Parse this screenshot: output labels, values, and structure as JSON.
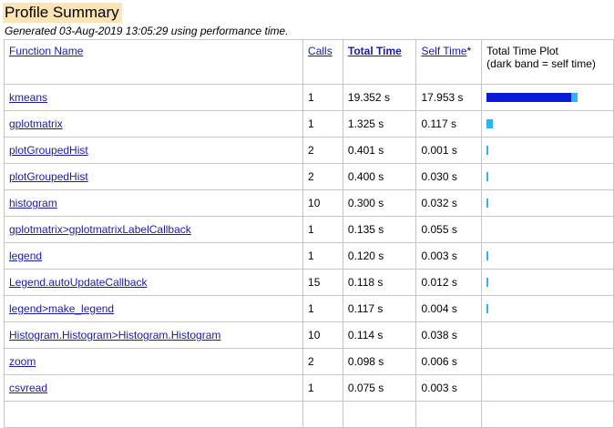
{
  "title": "Profile Summary",
  "subtitle": "Generated 03-Aug-2019 13:05:29 using performance time.",
  "headers": {
    "function_name": "Function Name",
    "calls": "Calls",
    "total_time": "Total Time",
    "self_time": "Self Time",
    "self_time_suffix": "*",
    "plot_line1": "Total Time Plot",
    "plot_line2": "(dark band = self time)"
  },
  "colors": {
    "total_band": "#2fb4f2",
    "self_band": "#0b1ad8",
    "title_bg": "#fde4b4",
    "link": "#1a1aa6"
  },
  "rows": [
    {
      "fn": "kmeans",
      "calls": "1",
      "total": "19.352 s",
      "self": "17.953 s",
      "total_val": 19.352,
      "self_val": 17.953
    },
    {
      "fn": "gplotmatrix",
      "calls": "1",
      "total": "1.325 s",
      "self": "0.117 s",
      "total_val": 1.325,
      "self_val": 0.117
    },
    {
      "fn": "plotGroupedHist",
      "calls": "2",
      "total": "0.401 s",
      "self": "0.001 s",
      "total_val": 0.401,
      "self_val": 0.001
    },
    {
      "fn": "plotGroupedHist",
      "calls": "2",
      "total": "0.400 s",
      "self": "0.030 s",
      "total_val": 0.4,
      "self_val": 0.03
    },
    {
      "fn": "histogram",
      "calls": "10",
      "total": "0.300 s",
      "self": "0.032 s",
      "total_val": 0.3,
      "self_val": 0.032
    },
    {
      "fn": "gplotmatrix>gplotmatrixLabelCallback",
      "calls": "1",
      "total": "0.135 s",
      "self": "0.055 s",
      "total_val": 0.135,
      "self_val": 0.055,
      "no_plot": true
    },
    {
      "fn": "legend",
      "calls": "1",
      "total": "0.120 s",
      "self": "0.003 s",
      "total_val": 0.12,
      "self_val": 0.003
    },
    {
      "fn": "Legend.autoUpdateCallback",
      "calls": "15",
      "total": "0.118 s",
      "self": "0.012 s",
      "total_val": 0.118,
      "self_val": 0.012
    },
    {
      "fn": "legend>make_legend",
      "calls": "1",
      "total": "0.117 s",
      "self": "0.004 s",
      "total_val": 0.117,
      "self_val": 0.004
    },
    {
      "fn": "Histogram.Histogram>Histogram.Histogram",
      "calls": "10",
      "total": "0.114 s",
      "self": "0.038 s",
      "total_val": 0.114,
      "self_val": 0.038,
      "no_plot": true
    },
    {
      "fn": "zoom",
      "calls": "2",
      "total": "0.098 s",
      "self": "0.006 s",
      "total_val": 0.098,
      "self_val": 0.006,
      "no_plot": true
    },
    {
      "fn": "csvread",
      "calls": "1",
      "total": "0.075 s",
      "self": "0.003 s",
      "total_val": 0.075,
      "self_val": 0.003,
      "no_plot": true
    },
    {
      "fn": "",
      "calls": "",
      "total": "",
      "self": "",
      "total_val": 0,
      "self_val": 0,
      "no_plot": true
    }
  ]
}
